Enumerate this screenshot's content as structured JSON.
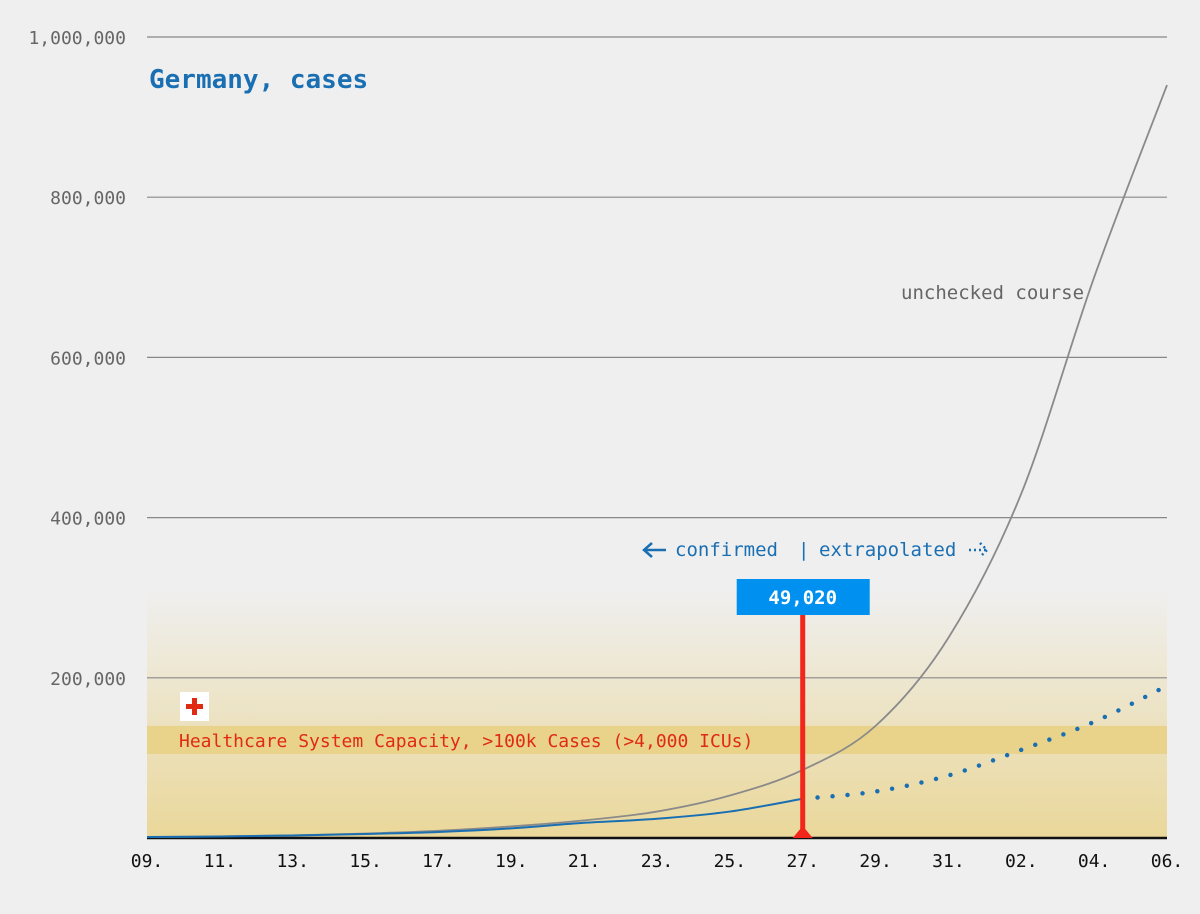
{
  "chart_data": {
    "type": "line",
    "title": "Germany, cases",
    "y_range": [
      0,
      1000000
    ],
    "y_ticks": [
      {
        "value": 1000000,
        "label": "1,000,000"
      },
      {
        "value": 800000,
        "label": "800,000"
      },
      {
        "value": 600000,
        "label": "600,000"
      },
      {
        "value": 400000,
        "label": "400,000"
      },
      {
        "value": 200000,
        "label": "200,000"
      }
    ],
    "x_range": [
      0,
      28
    ],
    "x_ticks": [
      {
        "day": 0,
        "label": "09."
      },
      {
        "day": 2,
        "label": "11."
      },
      {
        "day": 4,
        "label": "13."
      },
      {
        "day": 6,
        "label": "15."
      },
      {
        "day": 8,
        "label": "17."
      },
      {
        "day": 10,
        "label": "19."
      },
      {
        "day": 12,
        "label": "21."
      },
      {
        "day": 14,
        "label": "23."
      },
      {
        "day": 16,
        "label": "25."
      },
      {
        "day": 18,
        "label": "27."
      },
      {
        "day": 20,
        "label": "29."
      },
      {
        "day": 22,
        "label": "31."
      },
      {
        "day": 24,
        "label": "02."
      },
      {
        "day": 26,
        "label": "04."
      },
      {
        "day": 28,
        "label": "06."
      }
    ],
    "grid": true,
    "series": [
      {
        "name": "unchecked course",
        "style": "solid",
        "color": "#8a8a8a",
        "points": [
          [
            0,
            1200
          ],
          [
            2,
            2000
          ],
          [
            4,
            3300
          ],
          [
            6,
            5600
          ],
          [
            8,
            9000
          ],
          [
            10,
            14500
          ],
          [
            12,
            22000
          ],
          [
            14,
            33000
          ],
          [
            16,
            53000
          ],
          [
            18,
            85000
          ],
          [
            20,
            140000
          ],
          [
            22,
            250000
          ],
          [
            24,
            430000
          ],
          [
            26,
            700000
          ],
          [
            28,
            940000
          ]
        ]
      },
      {
        "name": "confirmed",
        "style": "solid",
        "color": "#1a6fb3",
        "points": [
          [
            0,
            1200
          ],
          [
            2,
            1900
          ],
          [
            4,
            3100
          ],
          [
            6,
            5000
          ],
          [
            8,
            7500
          ],
          [
            10,
            12000
          ],
          [
            12,
            19000
          ],
          [
            14,
            24000
          ],
          [
            16,
            33000
          ],
          [
            18,
            49020
          ]
        ]
      },
      {
        "name": "extrapolated",
        "style": "dotted",
        "color": "#1a6fb3",
        "points": [
          [
            18,
            49020
          ],
          [
            20,
            58000
          ],
          [
            22,
            78000
          ],
          [
            24,
            110000
          ],
          [
            26,
            145000
          ],
          [
            28,
            190000
          ]
        ]
      }
    ],
    "annotations": {
      "series_label": "unchecked course",
      "split_label_left": "confirmed",
      "split_separator": "|",
      "split_label_right": "extrapolated",
      "callout_value": "49,020",
      "callout_day": 18,
      "callout_y": 49020,
      "capacity_label": "Healthcare System Capacity, >100k Cases (>4,000 ICUs)",
      "capacity_range": [
        105000,
        140000
      ],
      "gradient_top": 310000
    },
    "colors": {
      "confirmed": "#1a6fb3",
      "extrapolated": "#1a6fb3",
      "unchecked": "#8a8a8a",
      "marker": "#f2261a",
      "callout_bg": "#0090f0",
      "capacity_band": "#e9d38a",
      "capacity_text": "#e02a14",
      "grid": "#888888",
      "axis": "#111111"
    }
  }
}
